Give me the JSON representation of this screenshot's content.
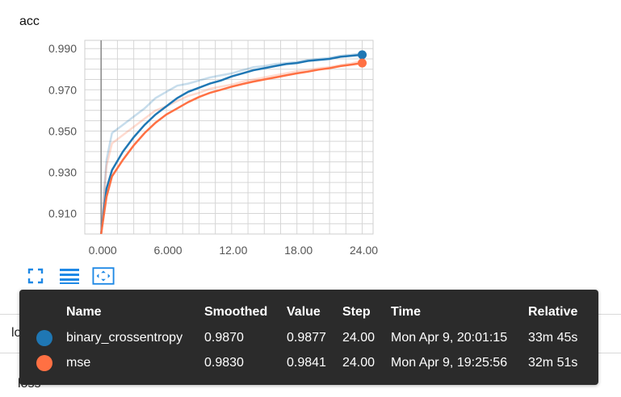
{
  "card": {
    "title": "acc"
  },
  "colors": {
    "series1": "#1f77b4",
    "series2": "#ff7043",
    "grid": "#dddddd",
    "axis": "#777777"
  },
  "chart_data": {
    "type": "line",
    "title": "acc",
    "xlabel": "",
    "ylabel": "",
    "xlim": [
      -1.5,
      25
    ],
    "ylim": [
      0.9,
      0.994
    ],
    "xticks": [
      0,
      6,
      12,
      18,
      24
    ],
    "xtick_labels": [
      "0.000",
      "6.000",
      "12.00",
      "18.00",
      "24.00"
    ],
    "yticks": [
      0.91,
      0.93,
      0.95,
      0.97,
      0.99
    ],
    "ytick_labels": [
      "0.910",
      "0.930",
      "0.950",
      "0.970",
      "0.990"
    ],
    "grid": true,
    "series": [
      {
        "name": "binary_crossentropy",
        "color": "#1f77b4",
        "x": [
          0,
          0.5,
          1,
          2,
          3,
          4,
          5,
          6,
          7,
          8,
          9,
          10,
          11,
          12,
          13,
          14,
          15,
          16,
          17,
          18,
          19,
          20,
          21,
          22,
          23,
          24
        ],
        "smoothed": [
          0.9,
          0.922,
          0.931,
          0.94,
          0.947,
          0.953,
          0.958,
          0.962,
          0.966,
          0.969,
          0.971,
          0.973,
          0.9745,
          0.9765,
          0.978,
          0.9795,
          0.9805,
          0.9815,
          0.9825,
          0.983,
          0.984,
          0.9845,
          0.985,
          0.986,
          0.9865,
          0.987
        ],
        "raw": [
          0.9,
          0.936,
          0.949,
          0.953,
          0.957,
          0.961,
          0.966,
          0.969,
          0.972,
          0.973,
          0.9745,
          0.976,
          0.977,
          0.978,
          0.9795,
          0.981,
          0.9815,
          0.9825,
          0.983,
          0.9835,
          0.9845,
          0.985,
          0.9855,
          0.9865,
          0.987,
          0.9877
        ]
      },
      {
        "name": "mse",
        "color": "#ff7043",
        "x": [
          0,
          0.5,
          1,
          2,
          3,
          4,
          5,
          6,
          7,
          8,
          9,
          10,
          11,
          12,
          13,
          14,
          15,
          16,
          17,
          18,
          19,
          20,
          21,
          22,
          23,
          24
        ],
        "smoothed": [
          0.9,
          0.918,
          0.928,
          0.936,
          0.943,
          0.949,
          0.954,
          0.958,
          0.961,
          0.964,
          0.9665,
          0.9685,
          0.97,
          0.9715,
          0.9728,
          0.974,
          0.975,
          0.976,
          0.977,
          0.978,
          0.9788,
          0.9798,
          0.9805,
          0.9815,
          0.9822,
          0.983
        ],
        "raw": [
          0.9,
          0.933,
          0.944,
          0.948,
          0.952,
          0.956,
          0.96,
          0.962,
          0.9645,
          0.967,
          0.9685,
          0.9705,
          0.9715,
          0.9725,
          0.974,
          0.975,
          0.976,
          0.977,
          0.978,
          0.979,
          0.9795,
          0.9805,
          0.981,
          0.982,
          0.9828,
          0.9841
        ]
      }
    ]
  },
  "tooltip": {
    "headers": {
      "name": "Name",
      "smoothed": "Smoothed",
      "value": "Value",
      "step": "Step",
      "time": "Time",
      "relative": "Relative"
    },
    "rows": [
      {
        "name": "binary_crossentropy",
        "smoothed": "0.9870",
        "value": "0.9877",
        "step": "24.00",
        "time": "Mon Apr 9, 20:01:15",
        "relative": "33m 45s",
        "color": "#1f77b4"
      },
      {
        "name": "mse",
        "smoothed": "0.9830",
        "value": "0.9841",
        "step": "24.00",
        "time": "Mon Apr 9, 19:25:56",
        "relative": "32m 51s",
        "color": "#ff7043"
      }
    ]
  },
  "background_cards": [
    {
      "title": "loss"
    },
    {
      "title": "loss"
    }
  ],
  "icons": [
    "fullscreen-icon",
    "toggle-log-scale-icon",
    "fit-domain-icon"
  ]
}
